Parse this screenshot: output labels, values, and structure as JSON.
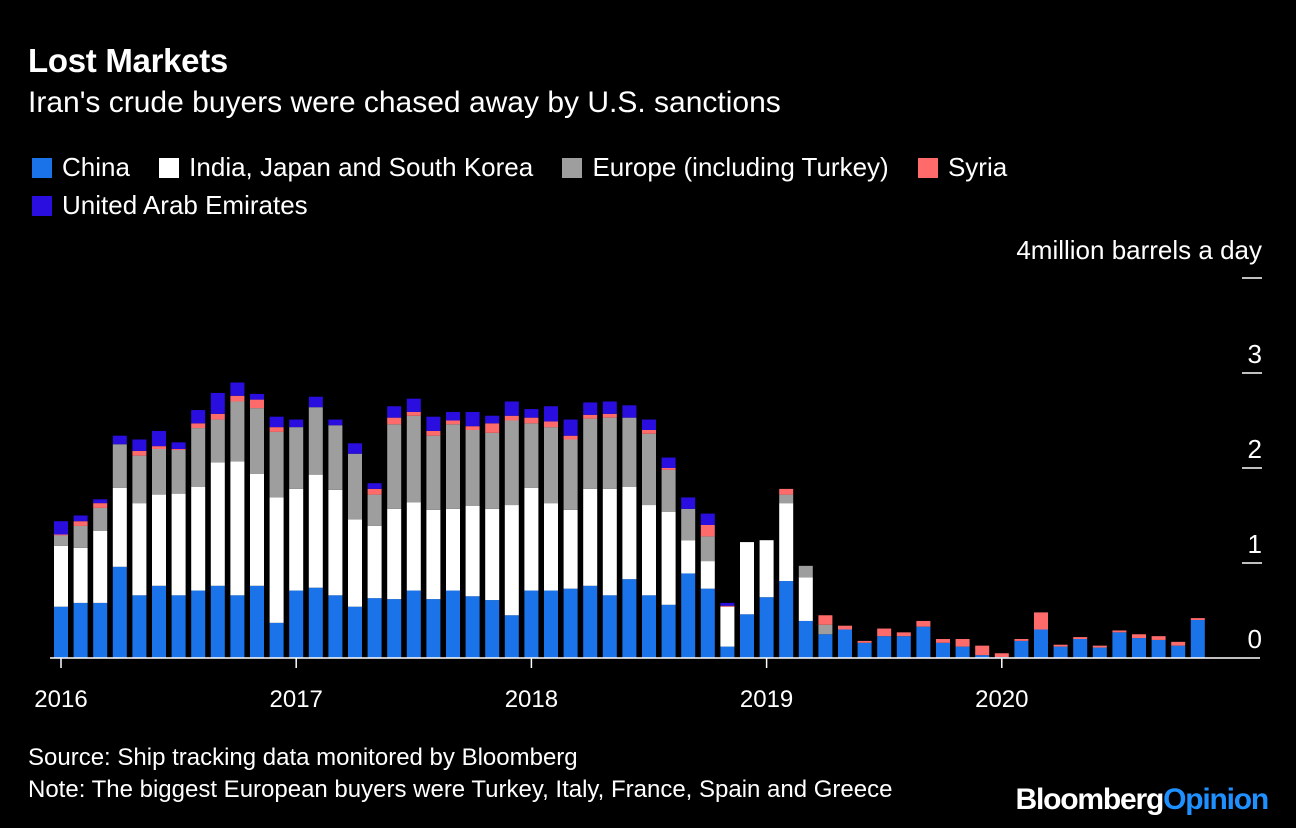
{
  "title": "Lost Markets",
  "subtitle": "Iran's crude buyers were chased away by U.S. sanctions",
  "y_unit_label": "4million barrels a day",
  "legend": [
    {
      "label": "China",
      "color": "#1a73e8"
    },
    {
      "label": "India, Japan and South Korea",
      "color": "#ffffff"
    },
    {
      "label": "Europe (including Turkey)",
      "color": "#9e9e9e"
    },
    {
      "label": "Syria",
      "color": "#ff6b6b"
    },
    {
      "label": "United Arab Emirates",
      "color": "#2a0ee0"
    }
  ],
  "source": "Source: Ship tracking data monitored by Bloomberg",
  "note": "Note: The biggest European buyers were Turkey, Italy, France, Spain and Greece",
  "brand": {
    "part1": "Bloomberg",
    "part2": "Opinion",
    "color1": "#ffffff",
    "color2": "#1e90ff"
  },
  "chart_data": {
    "type": "bar",
    "stacked": true,
    "unit": "million barrels a day",
    "ylim": [
      0,
      4
    ],
    "yticks": [
      0,
      1,
      2,
      3,
      4
    ],
    "ytick_labels": [
      "0",
      "1",
      "2",
      "3",
      "4"
    ],
    "xtick_labels": [
      "2016",
      "2017",
      "2018",
      "2019",
      "2020"
    ],
    "categories": [
      "2016-01",
      "2016-02",
      "2016-03",
      "2016-04",
      "2016-05",
      "2016-06",
      "2016-07",
      "2016-08",
      "2016-09",
      "2016-10",
      "2016-11",
      "2016-12",
      "2017-01",
      "2017-02",
      "2017-03",
      "2017-04",
      "2017-05",
      "2017-06",
      "2017-07",
      "2017-08",
      "2017-09",
      "2017-10",
      "2017-11",
      "2017-12",
      "2018-01",
      "2018-02",
      "2018-03",
      "2018-04",
      "2018-05",
      "2018-06",
      "2018-07",
      "2018-08",
      "2018-09",
      "2018-10",
      "2018-11",
      "2018-12",
      "2019-01",
      "2019-02",
      "2019-03",
      "2019-04",
      "2019-05",
      "2019-06",
      "2019-07",
      "2019-08",
      "2019-09",
      "2019-10",
      "2019-11",
      "2019-12",
      "2020-01",
      "2020-02",
      "2020-03",
      "2020-04",
      "2020-05",
      "2020-06",
      "2020-07",
      "2020-08",
      "2020-09",
      "2020-10",
      "2020-11",
      "2020-12"
    ],
    "series": [
      {
        "name": "China",
        "color": "#1a73e8",
        "values": [
          0.54,
          0.58,
          0.58,
          0.96,
          0.66,
          0.76,
          0.66,
          0.71,
          0.76,
          0.66,
          0.76,
          0.37,
          0.71,
          0.74,
          0.66,
          0.54,
          0.63,
          0.62,
          0.71,
          0.62,
          0.71,
          0.65,
          0.61,
          0.45,
          0.71,
          0.71,
          0.73,
          0.76,
          0.66,
          0.83,
          0.66,
          0.56,
          0.89,
          0.73,
          0.12,
          0.46,
          0.64,
          0.81,
          0.39,
          0.25,
          0.3,
          0.16,
          0.23,
          0.23,
          0.33,
          0.16,
          0.12,
          0.03,
          0.01,
          0.18,
          0.3,
          0.12,
          0.2,
          0.11,
          0.27,
          0.21,
          0.19,
          0.13,
          0.4,
          0.0
        ]
      },
      {
        "name": "India, Japan and South Korea",
        "color": "#ffffff",
        "values": [
          0.64,
          0.58,
          0.76,
          0.83,
          0.97,
          0.96,
          1.07,
          1.09,
          1.3,
          1.41,
          1.18,
          1.32,
          1.07,
          1.19,
          1.11,
          0.92,
          0.76,
          0.95,
          0.93,
          0.94,
          0.86,
          0.95,
          0.96,
          1.16,
          1.08,
          0.92,
          0.83,
          1.02,
          1.12,
          0.97,
          0.95,
          0.98,
          0.35,
          0.29,
          0.42,
          0.76,
          0.6,
          0.82,
          0.46,
          0,
          0,
          0,
          0,
          0,
          0,
          0,
          0,
          0,
          0,
          0,
          0,
          0,
          0,
          0,
          0,
          0,
          0,
          0,
          0,
          0
        ]
      },
      {
        "name": "Europe (including Turkey)",
        "color": "#9e9e9e",
        "values": [
          0.11,
          0.23,
          0.24,
          0.46,
          0.5,
          0.48,
          0.46,
          0.62,
          0.45,
          0.63,
          0.69,
          0.69,
          0.65,
          0.71,
          0.68,
          0.69,
          0.33,
          0.89,
          0.91,
          0.78,
          0.89,
          0.8,
          0.8,
          0.89,
          0.68,
          0.8,
          0.74,
          0.74,
          0.75,
          0.73,
          0.75,
          0.44,
          0.33,
          0.26,
          0,
          0,
          0,
          0.09,
          0.12,
          0.1,
          0,
          0,
          0,
          0,
          0,
          0,
          0,
          0,
          0,
          0,
          0,
          0,
          0,
          0,
          0,
          0,
          0,
          0,
          0,
          0
        ]
      },
      {
        "name": "Syria",
        "color": "#ff6b6b",
        "values": [
          0.01,
          0.05,
          0.05,
          0,
          0.05,
          0.03,
          0.01,
          0.05,
          0.06,
          0.06,
          0.09,
          0.05,
          0,
          0,
          0,
          0,
          0.06,
          0.07,
          0.04,
          0.05,
          0.04,
          0.04,
          0.1,
          0.05,
          0.06,
          0.06,
          0.04,
          0.04,
          0.04,
          0,
          0.04,
          0.02,
          0,
          0.12,
          0.01,
          0,
          0,
          0.06,
          0,
          0.1,
          0.04,
          0.02,
          0.08,
          0.04,
          0.06,
          0.04,
          0.08,
          0.1,
          0.04,
          0.02,
          0.18,
          0.02,
          0.02,
          0.02,
          0.02,
          0.04,
          0.04,
          0.04,
          0.02,
          0
        ]
      },
      {
        "name": "United Arab Emirates",
        "color": "#2a0ee0",
        "values": [
          0.14,
          0.06,
          0.04,
          0.09,
          0.12,
          0.16,
          0.07,
          0.14,
          0.22,
          0.14,
          0.06,
          0.11,
          0.08,
          0.11,
          0.06,
          0.11,
          0.06,
          0.12,
          0.14,
          0.15,
          0.09,
          0.15,
          0.08,
          0.15,
          0.09,
          0.16,
          0.17,
          0.13,
          0.13,
          0.13,
          0.11,
          0.11,
          0.12,
          0.12,
          0.03,
          0,
          0,
          0,
          0,
          0,
          0,
          0,
          0,
          0,
          0,
          0,
          0,
          0,
          0,
          0,
          0,
          0,
          0,
          0,
          0,
          0,
          0,
          0,
          0,
          0
        ]
      }
    ]
  }
}
